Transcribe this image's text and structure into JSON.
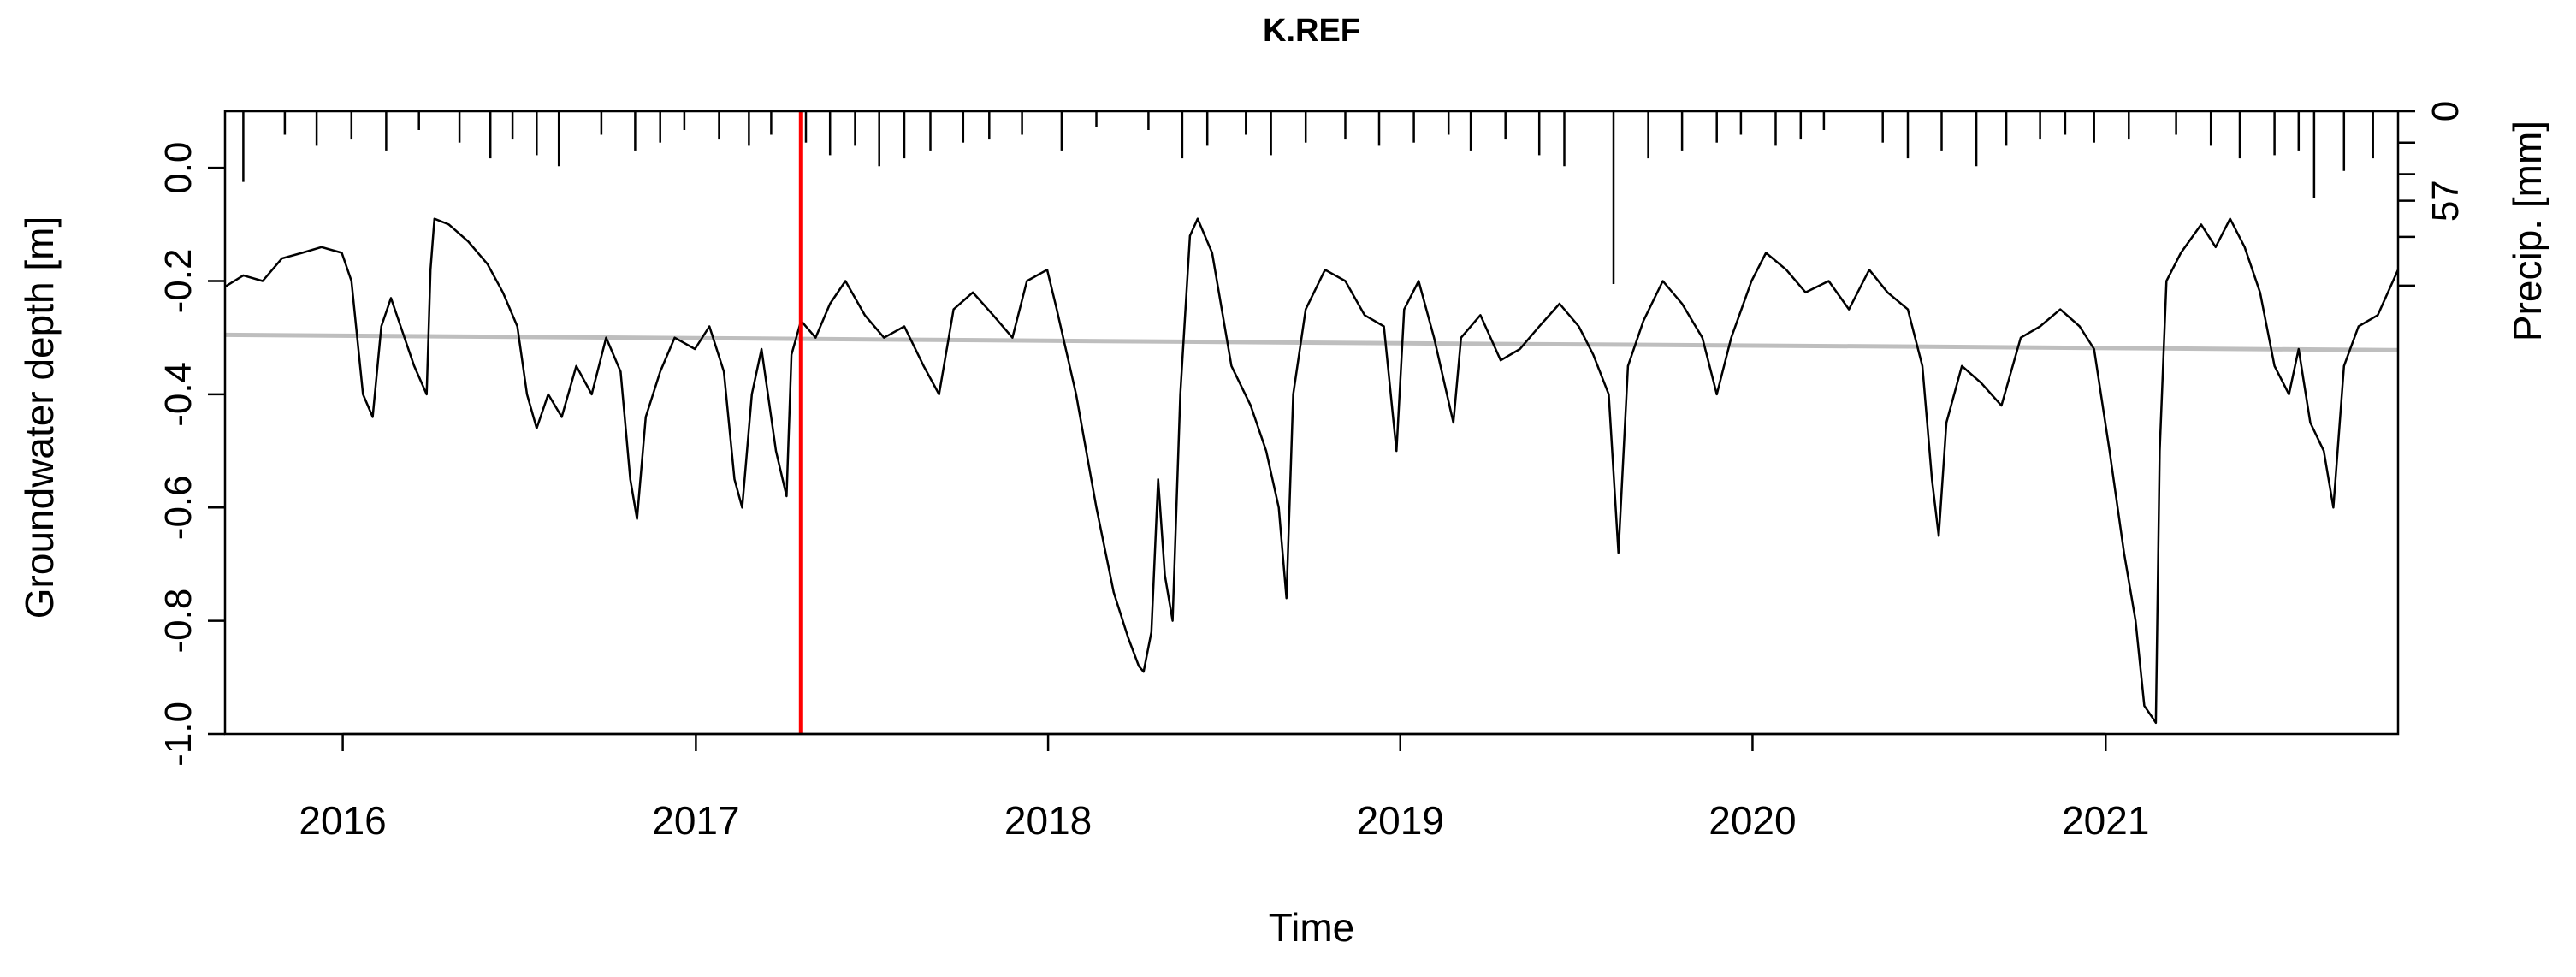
{
  "chart_data": {
    "type": "line",
    "title": "K.REF",
    "xlabel": "Time",
    "ylabel": "Groundwater depth [m]",
    "y2label": "Precip. [mm]",
    "x_range": [
      "2015-09-01",
      "2021-10-31"
    ],
    "ylim": [
      -1.0,
      0.1
    ],
    "y2lim": [
      0,
      111
    ],
    "y2_reversed": true,
    "x_ticks": [
      "2016",
      "2017",
      "2018",
      "2019",
      "2020",
      "2021"
    ],
    "y_ticks": [
      "-1.0",
      "-0.8",
      "-0.6",
      "-0.4",
      "-0.2",
      "0.0"
    ],
    "y2_ticks": [
      "0",
      "57"
    ],
    "grid": false,
    "colors": {
      "groundwater": "#000000",
      "trend": "#bebebe",
      "marker": "#ff0000",
      "precip": "#000000"
    },
    "marker_line": {
      "x": "2017-04-20"
    },
    "series": [
      {
        "key": "groundwater",
        "points": [
          [
            "2015-09-01",
            -0.21
          ],
          [
            "2015-09-20",
            -0.19
          ],
          [
            "2015-10-10",
            -0.2
          ],
          [
            "2015-10-30",
            -0.16
          ],
          [
            "2015-11-20",
            -0.15
          ],
          [
            "2015-12-10",
            -0.14
          ],
          [
            "2015-12-31",
            -0.15
          ],
          [
            "2016-01-10",
            -0.2
          ],
          [
            "2016-01-22",
            -0.4
          ],
          [
            "2016-02-01",
            -0.44
          ],
          [
            "2016-02-10",
            -0.28
          ],
          [
            "2016-02-20",
            -0.23
          ],
          [
            "2016-03-01",
            -0.28
          ],
          [
            "2016-03-15",
            -0.35
          ],
          [
            "2016-03-28",
            -0.4
          ],
          [
            "2016-04-01",
            -0.18
          ],
          [
            "2016-04-05",
            -0.09
          ],
          [
            "2016-04-20",
            -0.1
          ],
          [
            "2016-05-10",
            -0.13
          ],
          [
            "2016-05-30",
            -0.17
          ],
          [
            "2016-06-15",
            -0.22
          ],
          [
            "2016-06-30",
            -0.28
          ],
          [
            "2016-07-10",
            -0.4
          ],
          [
            "2016-07-20",
            -0.46
          ],
          [
            "2016-08-01",
            -0.4
          ],
          [
            "2016-08-15",
            -0.44
          ],
          [
            "2016-08-30",
            -0.35
          ],
          [
            "2016-09-15",
            -0.4
          ],
          [
            "2016-09-30",
            -0.3
          ],
          [
            "2016-10-15",
            -0.36
          ],
          [
            "2016-10-25",
            -0.55
          ],
          [
            "2016-11-01",
            -0.62
          ],
          [
            "2016-11-10",
            -0.44
          ],
          [
            "2016-11-25",
            -0.36
          ],
          [
            "2016-12-10",
            -0.3
          ],
          [
            "2016-12-31",
            -0.32
          ],
          [
            "2017-01-15",
            -0.28
          ],
          [
            "2017-01-30",
            -0.36
          ],
          [
            "2017-02-10",
            -0.55
          ],
          [
            "2017-02-18",
            -0.6
          ],
          [
            "2017-02-28",
            -0.4
          ],
          [
            "2017-03-10",
            -0.32
          ],
          [
            "2017-03-25",
            -0.5
          ],
          [
            "2017-04-05",
            -0.58
          ],
          [
            "2017-04-10",
            -0.33
          ],
          [
            "2017-04-20",
            -0.27
          ],
          [
            "2017-05-05",
            -0.3
          ],
          [
            "2017-05-20",
            -0.24
          ],
          [
            "2017-06-05",
            -0.2
          ],
          [
            "2017-06-25",
            -0.26
          ],
          [
            "2017-07-15",
            -0.3
          ],
          [
            "2017-08-05",
            -0.28
          ],
          [
            "2017-08-25",
            -0.35
          ],
          [
            "2017-09-10",
            -0.4
          ],
          [
            "2017-09-25",
            -0.25
          ],
          [
            "2017-10-15",
            -0.22
          ],
          [
            "2017-11-05",
            -0.26
          ],
          [
            "2017-11-25",
            -0.3
          ],
          [
            "2017-12-10",
            -0.2
          ],
          [
            "2017-12-31",
            -0.18
          ],
          [
            "2018-01-10",
            -0.25
          ],
          [
            "2018-01-30",
            -0.4
          ],
          [
            "2018-02-20",
            -0.6
          ],
          [
            "2018-03-10",
            -0.75
          ],
          [
            "2018-03-25",
            -0.83
          ],
          [
            "2018-04-05",
            -0.88
          ],
          [
            "2018-04-10",
            -0.89
          ],
          [
            "2018-04-18",
            -0.82
          ],
          [
            "2018-04-25",
            -0.55
          ],
          [
            "2018-05-02",
            -0.72
          ],
          [
            "2018-05-10",
            -0.8
          ],
          [
            "2018-05-18",
            -0.4
          ],
          [
            "2018-05-28",
            -0.12
          ],
          [
            "2018-06-05",
            -0.09
          ],
          [
            "2018-06-20",
            -0.15
          ],
          [
            "2018-07-10",
            -0.35
          ],
          [
            "2018-07-30",
            -0.42
          ],
          [
            "2018-08-15",
            -0.5
          ],
          [
            "2018-08-28",
            -0.6
          ],
          [
            "2018-09-05",
            -0.76
          ],
          [
            "2018-09-12",
            -0.4
          ],
          [
            "2018-09-25",
            -0.25
          ],
          [
            "2018-10-15",
            -0.18
          ],
          [
            "2018-11-05",
            -0.2
          ],
          [
            "2018-11-25",
            -0.26
          ],
          [
            "2018-12-15",
            -0.28
          ],
          [
            "2018-12-28",
            -0.5
          ],
          [
            "2019-01-05",
            -0.25
          ],
          [
            "2019-01-20",
            -0.2
          ],
          [
            "2019-02-05",
            -0.3
          ],
          [
            "2019-02-25",
            -0.45
          ],
          [
            "2019-03-05",
            -0.3
          ],
          [
            "2019-03-25",
            -0.26
          ],
          [
            "2019-04-15",
            -0.34
          ],
          [
            "2019-05-05",
            -0.32
          ],
          [
            "2019-05-25",
            -0.28
          ],
          [
            "2019-06-15",
            -0.24
          ],
          [
            "2019-07-05",
            -0.28
          ],
          [
            "2019-07-20",
            -0.33
          ],
          [
            "2019-08-05",
            -0.4
          ],
          [
            "2019-08-15",
            -0.68
          ],
          [
            "2019-08-25",
            -0.35
          ],
          [
            "2019-09-10",
            -0.27
          ],
          [
            "2019-09-30",
            -0.2
          ],
          [
            "2019-10-20",
            -0.24
          ],
          [
            "2019-11-10",
            -0.3
          ],
          [
            "2019-11-25",
            -0.4
          ],
          [
            "2019-12-10",
            -0.3
          ],
          [
            "2019-12-31",
            -0.2
          ],
          [
            "2020-01-15",
            -0.15
          ],
          [
            "2020-02-05",
            -0.18
          ],
          [
            "2020-02-25",
            -0.22
          ],
          [
            "2020-03-20",
            -0.2
          ],
          [
            "2020-04-10",
            -0.25
          ],
          [
            "2020-05-01",
            -0.18
          ],
          [
            "2020-05-20",
            -0.22
          ],
          [
            "2020-06-10",
            -0.25
          ],
          [
            "2020-06-25",
            -0.35
          ],
          [
            "2020-07-05",
            -0.55
          ],
          [
            "2020-07-12",
            -0.65
          ],
          [
            "2020-07-20",
            -0.45
          ],
          [
            "2020-08-05",
            -0.35
          ],
          [
            "2020-08-25",
            -0.38
          ],
          [
            "2020-09-15",
            -0.42
          ],
          [
            "2020-10-05",
            -0.3
          ],
          [
            "2020-10-25",
            -0.28
          ],
          [
            "2020-11-15",
            -0.25
          ],
          [
            "2020-12-05",
            -0.28
          ],
          [
            "2020-12-20",
            -0.32
          ],
          [
            "2021-01-05",
            -0.5
          ],
          [
            "2021-01-20",
            -0.68
          ],
          [
            "2021-02-01",
            -0.8
          ],
          [
            "2021-02-10",
            -0.95
          ],
          [
            "2021-02-18",
            -0.97
          ],
          [
            "2021-02-22",
            -0.98
          ],
          [
            "2021-02-26",
            -0.5
          ],
          [
            "2021-03-05",
            -0.2
          ],
          [
            "2021-03-20",
            -0.15
          ],
          [
            "2021-04-10",
            -0.1
          ],
          [
            "2021-04-25",
            -0.14
          ],
          [
            "2021-05-10",
            -0.09
          ],
          [
            "2021-05-25",
            -0.14
          ],
          [
            "2021-06-10",
            -0.22
          ],
          [
            "2021-06-25",
            -0.35
          ],
          [
            "2021-07-10",
            -0.4
          ],
          [
            "2021-07-20",
            -0.32
          ],
          [
            "2021-08-01",
            -0.45
          ],
          [
            "2021-08-15",
            -0.5
          ],
          [
            "2021-08-25",
            -0.6
          ],
          [
            "2021-09-05",
            -0.35
          ],
          [
            "2021-09-20",
            -0.28
          ],
          [
            "2021-10-10",
            -0.26
          ],
          [
            "2021-10-31",
            -0.18
          ]
        ]
      },
      {
        "key": "trend",
        "points": [
          [
            "2015-09-01",
            -0.295
          ],
          [
            "2017-04-20",
            -0.302
          ],
          [
            "2019-01-01",
            -0.31
          ],
          [
            "2020-07-01",
            -0.316
          ],
          [
            "2021-10-31",
            -0.322
          ]
        ]
      },
      {
        "key": "precip",
        "points": [
          [
            "2015-09-20",
            45
          ],
          [
            "2015-11-02",
            15
          ],
          [
            "2015-12-05",
            22
          ],
          [
            "2016-01-10",
            18
          ],
          [
            "2016-02-15",
            25
          ],
          [
            "2016-03-20",
            12
          ],
          [
            "2016-05-01",
            20
          ],
          [
            "2016-06-02",
            30
          ],
          [
            "2016-06-25",
            18
          ],
          [
            "2016-07-20",
            28
          ],
          [
            "2016-08-12",
            35
          ],
          [
            "2016-09-25",
            15
          ],
          [
            "2016-10-30",
            25
          ],
          [
            "2016-11-25",
            20
          ],
          [
            "2016-12-20",
            12
          ],
          [
            "2017-01-25",
            18
          ],
          [
            "2017-02-25",
            22
          ],
          [
            "2017-03-20",
            15
          ],
          [
            "2017-04-25",
            20
          ],
          [
            "2017-05-20",
            28
          ],
          [
            "2017-06-15",
            22
          ],
          [
            "2017-07-10",
            35
          ],
          [
            "2017-08-05",
            30
          ],
          [
            "2017-09-01",
            25
          ],
          [
            "2017-10-05",
            20
          ],
          [
            "2017-11-01",
            18
          ],
          [
            "2017-12-05",
            15
          ],
          [
            "2018-01-15",
            25
          ],
          [
            "2018-02-20",
            10
          ],
          [
            "2018-04-15",
            12
          ],
          [
            "2018-05-20",
            30
          ],
          [
            "2018-06-15",
            22
          ],
          [
            "2018-07-25",
            15
          ],
          [
            "2018-08-20",
            28
          ],
          [
            "2018-09-25",
            20
          ],
          [
            "2018-11-05",
            18
          ],
          [
            "2018-12-10",
            22
          ],
          [
            "2019-01-15",
            20
          ],
          [
            "2019-02-20",
            15
          ],
          [
            "2019-03-15",
            25
          ],
          [
            "2019-04-20",
            18
          ],
          [
            "2019-05-25",
            28
          ],
          [
            "2019-06-20",
            35
          ],
          [
            "2019-08-10",
            110
          ],
          [
            "2019-09-15",
            30
          ],
          [
            "2019-10-20",
            25
          ],
          [
            "2019-11-25",
            20
          ],
          [
            "2019-12-20",
            15
          ],
          [
            "2020-01-25",
            22
          ],
          [
            "2020-02-20",
            18
          ],
          [
            "2020-03-15",
            12
          ],
          [
            "2020-05-15",
            20
          ],
          [
            "2020-06-10",
            30
          ],
          [
            "2020-07-15",
            25
          ],
          [
            "2020-08-20",
            35
          ],
          [
            "2020-09-20",
            22
          ],
          [
            "2020-10-25",
            18
          ],
          [
            "2020-11-20",
            15
          ],
          [
            "2020-12-20",
            20
          ],
          [
            "2021-01-25",
            18
          ],
          [
            "2021-03-15",
            15
          ],
          [
            "2021-04-20",
            22
          ],
          [
            "2021-05-20",
            30
          ],
          [
            "2021-06-25",
            28
          ],
          [
            "2021-07-20",
            25
          ],
          [
            "2021-08-05",
            55
          ],
          [
            "2021-09-05",
            38
          ],
          [
            "2021-10-05",
            30
          ]
        ]
      }
    ]
  }
}
